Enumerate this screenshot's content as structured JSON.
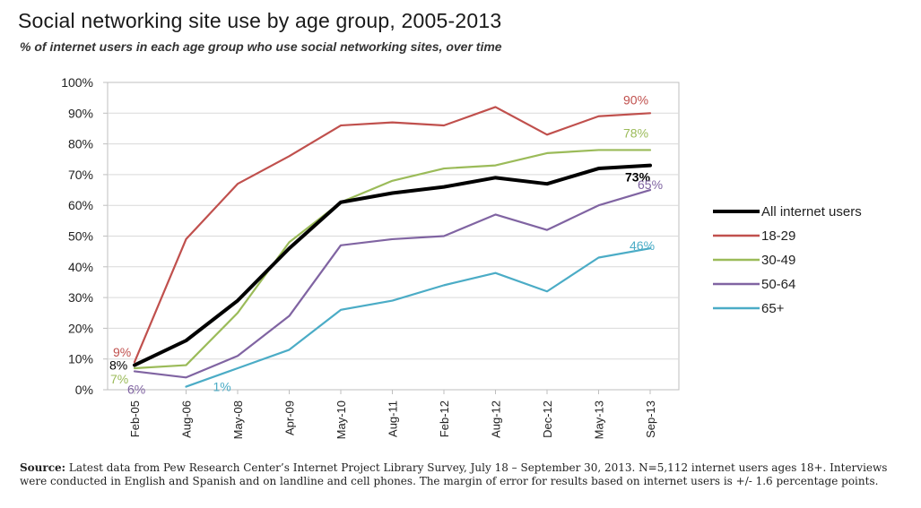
{
  "chart_data": {
    "type": "line",
    "title": "Social networking site use by age group, 2005-2013",
    "subtitle": "% of internet users in each age group who use social networking sites, over time",
    "categories": [
      "Feb-05",
      "Aug-06",
      "May-08",
      "Apr-09",
      "May-10",
      "Aug-11",
      "Feb-12",
      "Aug-12",
      "Dec-12",
      "May-13",
      "Sep-13"
    ],
    "ylim": [
      0,
      100
    ],
    "yticks": [
      "0%",
      "10%",
      "20%",
      "30%",
      "40%",
      "50%",
      "60%",
      "70%",
      "80%",
      "90%",
      "100%"
    ],
    "grid": "horizontal",
    "legend_position": "right",
    "series": [
      {
        "name": "All internet users",
        "color": "#000000",
        "values": [
          8,
          16,
          29,
          46,
          61,
          64,
          66,
          69,
          67,
          72,
          73
        ],
        "start_label": "8%",
        "end_label": "73%"
      },
      {
        "name": "18-29",
        "color": "#c0504d",
        "values": [
          9,
          49,
          67,
          76,
          86,
          87,
          86,
          92,
          83,
          89,
          90
        ],
        "start_label": "9%",
        "end_label": "90%"
      },
      {
        "name": "30-49",
        "color": "#9bbb59",
        "values": [
          7,
          8,
          25,
          48,
          61,
          68,
          72,
          73,
          77,
          78,
          78
        ],
        "start_label": "7%",
        "end_label": "78%"
      },
      {
        "name": "50-64",
        "color": "#8064a2",
        "values": [
          6,
          4,
          11,
          24,
          47,
          49,
          50,
          57,
          52,
          60,
          65
        ],
        "start_label": "6%",
        "end_label": "65%"
      },
      {
        "name": "65+",
        "color": "#4bacc6",
        "values": [
          null,
          1,
          7,
          13,
          26,
          29,
          34,
          38,
          32,
          43,
          46
        ],
        "start_label": "1%",
        "end_label": "46%"
      }
    ]
  },
  "source": {
    "lead": "Source:",
    "text": " Latest data from Pew Research Center’s Internet Project Library Survey, July 18 – September 30, 2013. N=5,112 internet users ages 18+. Interviews were conducted in English and Spanish and on landline and cell phones.  The margin of error for results based on internet users is +/- 1.6 percentage points."
  }
}
